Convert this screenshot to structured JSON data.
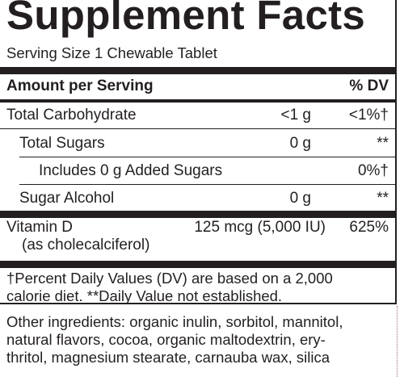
{
  "title": "Supplement Facts",
  "serving_size": "Serving Size 1 Chewable Tablet",
  "header": {
    "amount_label": "Amount per Serving",
    "dv_label": "% DV"
  },
  "rows": [
    {
      "name": "Total Carbohydrate",
      "amount": "<1 g",
      "dv": "<1%†"
    },
    {
      "name": "Total Sugars",
      "amount": "0 g",
      "dv": "**"
    },
    {
      "name": "Includes 0 g Added Sugars",
      "amount": "",
      "dv": "0%†"
    },
    {
      "name": "Sugar Alcohol",
      "amount": "0 g",
      "dv": "**"
    },
    {
      "name": "Vitamin D",
      "subname": "(as cholecalciferol)",
      "amount": "125 mcg (5,000 IU)",
      "dv": "625%"
    }
  ],
  "footnote": {
    "line1": "†Percent Daily Values (DV) are based on a 2,000",
    "line2": "calorie diet. **Daily Value not established."
  },
  "other_ingredients": {
    "line1": "Other ingredients: organic inulin, sorbitol, mannitol,",
    "line2": "natural flavors, cocoa, organic maltodextrin, ery-",
    "line3": "thritol, magnesium stearate, carnauba wax, silica"
  }
}
